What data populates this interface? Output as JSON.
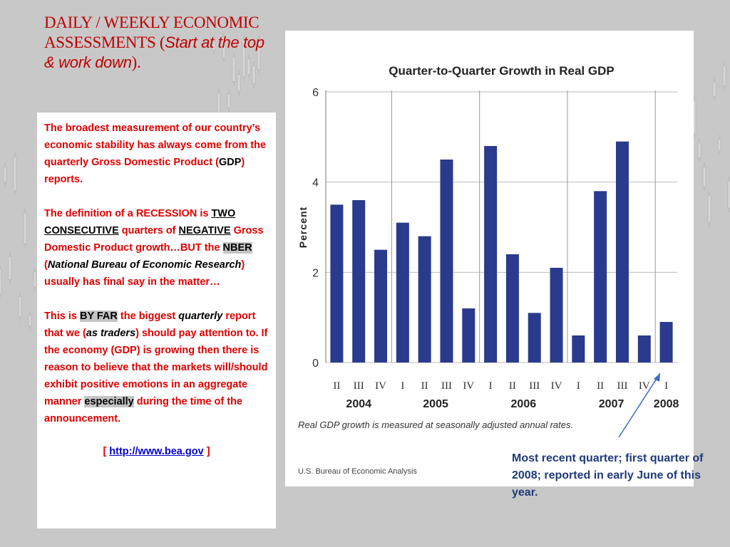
{
  "slide": {
    "title_part1": "DAILY / WEEKLY ECONOMIC ASSESSMENTS (",
    "title_italic": "Start at the top & work down",
    "title_end": ").",
    "p1_a": "The broadest measurement of our country’s economic stability has always come from the quarterly Gross Domestic Product (",
    "p1_gdp": "GDP",
    "p1_b": ") reports.",
    "p2_a": "The definition of a RECESSION is ",
    "p2_two": "TWO CONSECUTIVE",
    "p2_b": " quarters of ",
    "p2_negative": "NEGATIVE",
    "p2_c": " Gross Domestic Product growth…BUT the ",
    "p2_nber": "NBER",
    "p2_d": " (",
    "p2_nber_full": "National Bureau of Economic Research",
    "p2_e": ") usually has final say in the matter…",
    "p3_a": "This is ",
    "p3_byfar": "BY FAR",
    "p3_b": " the biggest ",
    "p3_quarterly": "quarterly",
    "p3_c": " report that we (",
    "p3_traders": "as traders",
    "p3_d": ") should pay attention to.  If the economy (GDP) is growing then there is reason to believe that the markets will/should exhibit positive emotions in an aggregate manner ",
    "p3_especially": "especially",
    "p3_e": " during the time of the announcement.",
    "link_open": "[ ",
    "link_text": "http://www.bea.gov",
    "link_close": " ]",
    "callout": "Most recent quarter; first quarter of 2008; reported in early June of this year."
  },
  "chart_data": {
    "type": "bar",
    "title": "Quarter-to-Quarter Growth in Real GDP",
    "ylabel": "Percent",
    "ylim": [
      0,
      6
    ],
    "yticks": [
      0,
      2,
      4,
      6
    ],
    "categories": [
      "II",
      "III",
      "IV",
      "I",
      "II",
      "III",
      "IV",
      "I",
      "II",
      "III",
      "IV",
      "I",
      "II",
      "III",
      "IV",
      "I"
    ],
    "years": [
      {
        "label": "2004",
        "start": 0,
        "end": 2
      },
      {
        "label": "2005",
        "start": 3,
        "end": 6
      },
      {
        "label": "2006",
        "start": 7,
        "end": 10
      },
      {
        "label": "2007",
        "start": 11,
        "end": 14
      },
      {
        "label": "2008",
        "start": 15,
        "end": 15
      }
    ],
    "values": [
      3.5,
      3.6,
      2.5,
      3.1,
      2.8,
      4.5,
      1.2,
      4.8,
      2.4,
      1.1,
      2.1,
      0.6,
      3.8,
      4.9,
      0.6,
      0.9
    ],
    "bar_color": "#2a3a8c",
    "note": "Real GDP growth is measured at seasonally adjusted annual rates.",
    "source": "U.S. Bureau of Economic Analysis"
  }
}
